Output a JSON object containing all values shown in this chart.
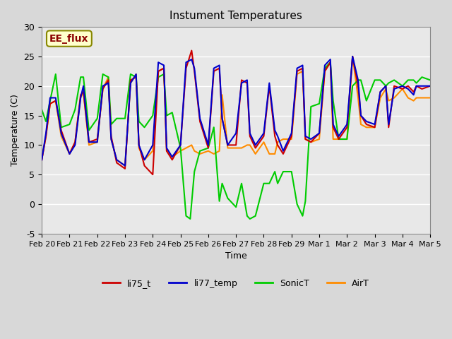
{
  "title": "Instument Temperatures",
  "xlabel": "Time",
  "ylabel": "Temperature (C)",
  "ylim": [
    -5,
    30
  ],
  "annotation_text": "EE_flux",
  "annotation_color": "#8B0000",
  "annotation_bg": "#FFFFCC",
  "background_color": "#E8E8E8",
  "plot_bg": "#F0F0F0",
  "grid_color": "white",
  "xtick_labels": [
    "Feb 20",
    "Feb 21",
    "Feb 22",
    "Feb 23",
    "Feb 24",
    "Feb 25",
    "Feb 26",
    "Feb 27",
    "Feb 28",
    "Feb 29",
    "Mar 1",
    "Mar 2",
    "Mar 3",
    "Mar 4",
    "Mar 5"
  ],
  "series": {
    "li75_t": {
      "color": "#CC0000",
      "linewidth": 1.5,
      "zorder": 3
    },
    "li77_temp": {
      "color": "#0000CC",
      "linewidth": 1.5,
      "zorder": 4
    },
    "SonicT": {
      "color": "#00CC00",
      "linewidth": 1.5,
      "zorder": 2
    },
    "AirT": {
      "color": "#FF8C00",
      "linewidth": 1.5,
      "zorder": 1
    }
  },
  "li75_t_x": [
    0,
    0.15,
    0.3,
    0.5,
    0.7,
    1.0,
    1.2,
    1.4,
    1.5,
    1.7,
    2.0,
    2.2,
    2.4,
    2.5,
    2.7,
    3.0,
    3.2,
    3.4,
    3.5,
    3.7,
    4.0,
    4.2,
    4.4,
    4.5,
    4.7,
    5.0,
    5.2,
    5.4,
    5.5,
    5.7,
    6.0,
    6.2,
    6.4,
    6.5,
    6.7,
    7.0,
    7.2,
    7.4,
    7.5,
    7.7,
    8.0,
    8.2,
    8.4,
    8.5,
    8.7,
    9.0,
    9.2,
    9.4,
    9.5,
    9.7,
    10.0,
    10.2,
    10.4,
    10.5,
    10.7,
    11.0,
    11.2,
    11.4,
    11.5,
    11.7,
    12.0,
    12.2,
    12.4,
    12.5,
    12.7,
    13.0,
    13.2,
    13.4,
    13.5,
    13.7,
    14.0
  ],
  "li75_t_y": [
    7.5,
    11.5,
    17.0,
    17.5,
    12.5,
    8.5,
    10.5,
    18.5,
    19.0,
    10.5,
    11.0,
    19.5,
    21.0,
    11.5,
    7.0,
    6.0,
    21.0,
    21.5,
    10.0,
    6.5,
    5.0,
    22.5,
    23.0,
    9.0,
    7.5,
    10.0,
    23.0,
    26.0,
    22.5,
    14.0,
    9.5,
    22.5,
    23.0,
    14.5,
    10.0,
    10.0,
    21.0,
    20.5,
    11.5,
    9.5,
    11.5,
    20.0,
    11.5,
    10.0,
    8.5,
    11.5,
    22.5,
    23.0,
    11.0,
    10.5,
    12.0,
    22.5,
    24.0,
    13.0,
    11.0,
    13.0,
    25.0,
    20.0,
    15.0,
    13.5,
    13.0,
    19.0,
    20.0,
    13.0,
    20.0,
    19.5,
    20.0,
    19.0,
    20.0,
    19.5,
    20.0
  ],
  "li77_temp_x": [
    0,
    0.15,
    0.3,
    0.5,
    0.7,
    1.0,
    1.2,
    1.4,
    1.5,
    1.7,
    2.0,
    2.2,
    2.4,
    2.5,
    2.7,
    3.0,
    3.2,
    3.4,
    3.5,
    3.7,
    4.0,
    4.2,
    4.4,
    4.5,
    4.7,
    5.0,
    5.2,
    5.4,
    5.5,
    5.7,
    6.0,
    6.2,
    6.4,
    6.5,
    6.7,
    7.0,
    7.2,
    7.4,
    7.5,
    7.7,
    8.0,
    8.2,
    8.4,
    8.5,
    8.7,
    9.0,
    9.2,
    9.4,
    9.5,
    9.7,
    10.0,
    10.2,
    10.4,
    10.5,
    10.7,
    11.0,
    11.2,
    11.4,
    11.5,
    11.7,
    12.0,
    12.2,
    12.4,
    12.5,
    12.7,
    13.0,
    13.2,
    13.4,
    13.5,
    13.7,
    14.0
  ],
  "li77_temp_y": [
    7.5,
    12.0,
    18.0,
    18.0,
    12.0,
    8.5,
    10.0,
    18.0,
    20.0,
    10.5,
    10.5,
    20.0,
    20.5,
    11.0,
    7.5,
    6.5,
    20.5,
    22.0,
    10.0,
    7.5,
    10.0,
    24.0,
    23.5,
    9.5,
    8.0,
    10.0,
    24.0,
    24.5,
    23.0,
    14.5,
    10.0,
    23.0,
    23.5,
    14.5,
    10.0,
    12.0,
    20.5,
    21.0,
    12.0,
    10.0,
    12.0,
    20.5,
    12.5,
    11.5,
    9.0,
    12.0,
    23.0,
    23.5,
    11.5,
    11.0,
    12.0,
    23.5,
    24.5,
    13.5,
    11.5,
    13.5,
    25.0,
    21.0,
    15.0,
    14.0,
    13.5,
    19.0,
    20.0,
    13.5,
    19.5,
    20.0,
    19.5,
    18.5,
    20.0,
    20.0,
    20.0
  ],
  "SonicT_x": [
    0,
    0.15,
    0.3,
    0.5,
    0.7,
    1.0,
    1.2,
    1.4,
    1.5,
    1.7,
    2.0,
    2.2,
    2.4,
    2.5,
    2.7,
    3.0,
    3.2,
    3.4,
    3.5,
    3.7,
    4.0,
    4.2,
    4.4,
    4.5,
    4.7,
    5.0,
    5.2,
    5.35,
    5.5,
    5.7,
    6.0,
    6.2,
    6.4,
    6.5,
    6.7,
    7.0,
    7.2,
    7.4,
    7.5,
    7.7,
    8.0,
    8.2,
    8.4,
    8.5,
    8.7,
    9.0,
    9.2,
    9.4,
    9.5,
    9.7,
    10.0,
    10.2,
    10.4,
    10.5,
    10.7,
    11.0,
    11.2,
    11.4,
    11.5,
    11.7,
    12.0,
    12.2,
    12.4,
    12.5,
    12.7,
    13.0,
    13.2,
    13.4,
    13.5,
    13.7,
    14.0
  ],
  "SonicT_y": [
    16.0,
    14.0,
    17.5,
    22.0,
    13.0,
    13.5,
    16.0,
    21.5,
    21.5,
    12.5,
    14.5,
    22.0,
    21.5,
    13.5,
    14.5,
    14.5,
    22.0,
    21.5,
    14.0,
    13.0,
    15.0,
    21.5,
    22.0,
    15.0,
    15.5,
    9.5,
    -2.0,
    -2.5,
    5.5,
    9.0,
    9.5,
    13.0,
    0.5,
    3.5,
    1.0,
    -0.5,
    3.5,
    -2.0,
    -2.5,
    -2.0,
    3.5,
    3.5,
    5.5,
    3.5,
    5.5,
    5.5,
    0.0,
    -2.0,
    0.5,
    16.5,
    17.0,
    23.0,
    24.0,
    17.5,
    11.0,
    11.0,
    20.0,
    21.0,
    21.0,
    17.5,
    21.0,
    21.0,
    20.0,
    20.5,
    21.0,
    20.0,
    21.0,
    21.0,
    20.5,
    21.5,
    21.0
  ],
  "AirT_x": [
    0,
    0.15,
    0.3,
    0.5,
    0.7,
    1.0,
    1.2,
    1.4,
    1.5,
    1.7,
    2.0,
    2.2,
    2.4,
    2.5,
    2.7,
    3.0,
    3.2,
    3.4,
    3.5,
    3.7,
    4.0,
    4.2,
    4.4,
    4.5,
    4.7,
    5.0,
    5.2,
    5.4,
    5.5,
    5.7,
    6.0,
    6.2,
    6.4,
    6.5,
    6.7,
    7.0,
    7.2,
    7.4,
    7.5,
    7.7,
    8.0,
    8.2,
    8.4,
    8.5,
    8.7,
    9.0,
    9.2,
    9.4,
    9.5,
    9.7,
    10.0,
    10.2,
    10.4,
    10.5,
    10.7,
    11.0,
    11.2,
    11.4,
    11.5,
    11.7,
    12.0,
    12.2,
    12.4,
    12.5,
    12.7,
    13.0,
    13.2,
    13.4,
    13.5,
    13.7,
    14.0
  ],
  "AirT_y": [
    7.5,
    11.5,
    17.0,
    17.5,
    11.5,
    8.5,
    10.5,
    18.0,
    19.0,
    10.0,
    10.5,
    19.5,
    21.5,
    11.0,
    7.5,
    6.5,
    20.5,
    22.0,
    9.5,
    7.5,
    9.0,
    22.5,
    23.0,
    9.0,
    8.0,
    9.0,
    9.5,
    10.0,
    9.0,
    8.5,
    9.0,
    8.5,
    9.0,
    18.5,
    9.5,
    9.5,
    9.5,
    10.0,
    10.0,
    8.5,
    10.5,
    8.5,
    8.5,
    10.5,
    11.0,
    11.0,
    22.0,
    22.5,
    11.0,
    10.5,
    11.0,
    22.5,
    24.0,
    11.0,
    11.0,
    11.0,
    25.0,
    18.0,
    13.5,
    13.0,
    13.0,
    18.0,
    19.5,
    17.5,
    18.0,
    19.5,
    18.0,
    17.5,
    18.0,
    18.0,
    18.0
  ]
}
